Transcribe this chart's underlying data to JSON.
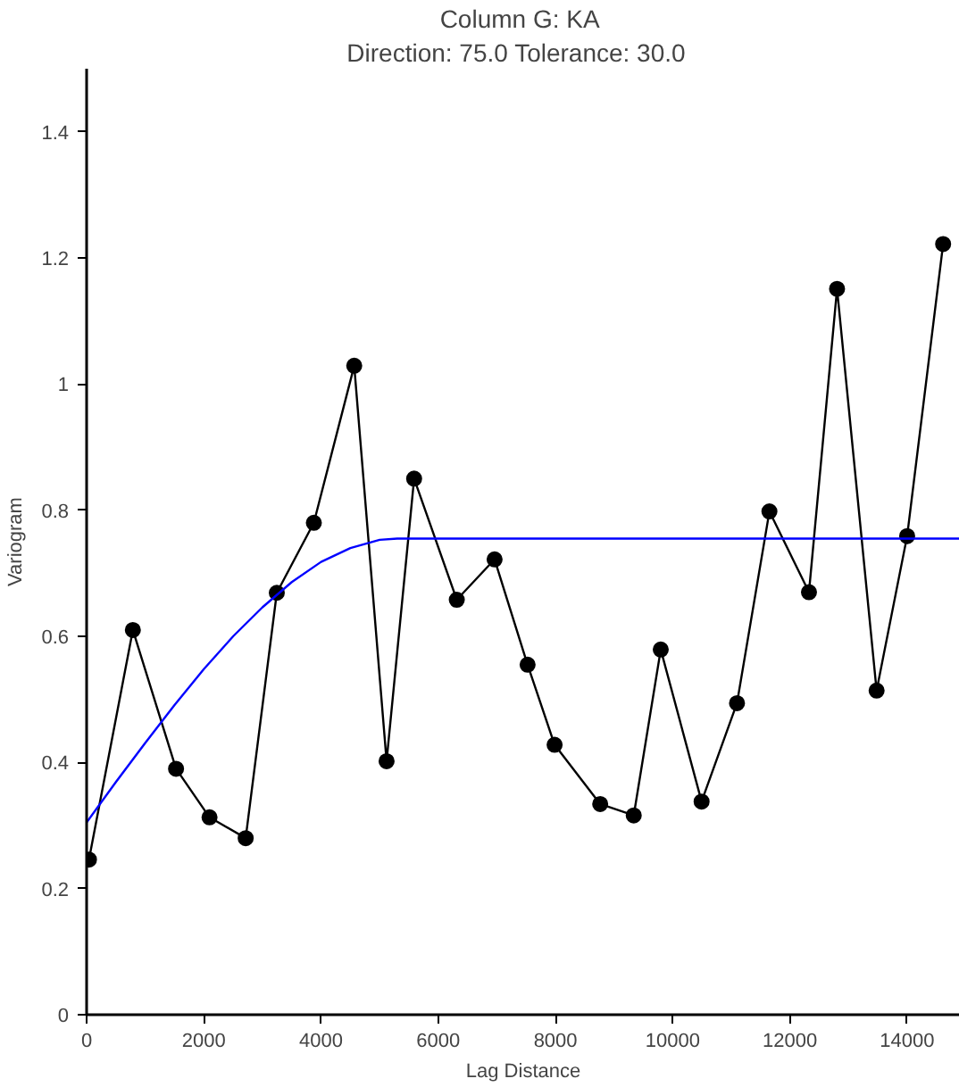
{
  "chart_data": {
    "type": "line",
    "title": "Column G:  KA",
    "subtitle": "Direction: 75.0   Tolerance: 30.0",
    "xlabel": "Lag Distance",
    "ylabel": "Variogram",
    "xlim": [
      0,
      14900
    ],
    "xticks": [
      0,
      2000,
      4000,
      6000,
      8000,
      10000,
      12000,
      14000
    ],
    "ylim": [
      0,
      1.5
    ],
    "yticks": [
      0,
      0.2,
      0.4,
      0.6,
      0.8,
      1,
      1.2,
      1.4
    ],
    "grid": false,
    "line_style": "solid",
    "series": [
      {
        "color": "#000000",
        "marker": "circle",
        "x": [
          40,
          789,
          1526,
          2097,
          2714,
          3245,
          3877,
          4566,
          5118,
          5588,
          6316,
          6961,
          7524,
          7985,
          8763,
          9335,
          9796,
          10493,
          11097,
          11650,
          12325,
          12804,
          13479,
          14000,
          14614
        ],
        "values": [
          0.246,
          0.61,
          0.39,
          0.313,
          0.28,
          0.669,
          0.78,
          1.029,
          0.402,
          0.85,
          0.658,
          0.722,
          0.555,
          0.428,
          0.334,
          0.316,
          0.579,
          0.338,
          0.494,
          0.798,
          0.67,
          1.151,
          0.514,
          0.759,
          1.222
        ]
      },
      {
        "color": "#0000ff",
        "marker": "none",
        "x": [
          0,
          500,
          1000,
          1500,
          2000,
          2500,
          3000,
          3500,
          4000,
          4500,
          5000,
          5300,
          14900
        ],
        "values": [
          0.305,
          0.369,
          0.431,
          0.491,
          0.548,
          0.6,
          0.646,
          0.686,
          0.718,
          0.74,
          0.753,
          0.755,
          0.755
        ]
      }
    ]
  }
}
